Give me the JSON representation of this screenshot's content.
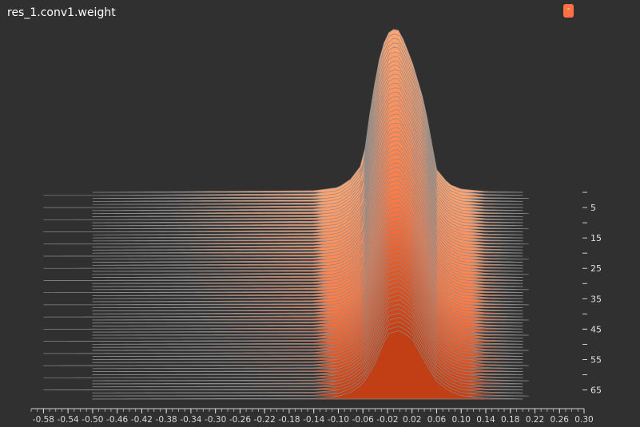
{
  "header": {
    "title": "res_1.conv1.weight",
    "badge_label": "-"
  },
  "chart_data": {
    "type": "area",
    "title": "res_1.conv1.weight",
    "xlabel": "",
    "ylabel": "",
    "x_ticks": [
      "-0.58",
      "-0.54",
      "-0.50",
      "-0.46",
      "-0.42",
      "-0.38",
      "-0.34",
      "-0.30",
      "-0.26",
      "-0.22",
      "-0.18",
      "-0.14",
      "-0.10",
      "-0.06",
      "-0.02",
      "0.02",
      "0.06",
      "0.10",
      "0.14",
      "0.18",
      "0.22",
      "0.26",
      "0.30"
    ],
    "xlim": [
      -0.6,
      0.3
    ],
    "y_ticks": [
      5,
      15,
      25,
      35,
      45,
      55,
      65
    ],
    "y_minor_ticks": [
      0,
      10,
      20,
      30,
      40,
      45,
      50,
      60
    ],
    "steps": 69,
    "colors": {
      "front": "#c23e14",
      "mid": "#ff7a45",
      "back": "#ffa472",
      "edge": "#8a8a8a",
      "background": "#303030"
    },
    "distribution": {
      "front_step": {
        "center": -0.005,
        "peak_height_fraction": 0.43
      },
      "back_step": {
        "center": -0.01,
        "peak_height_fraction": 0.63
      }
    },
    "front_profile": [
      [
        -0.58,
        0
      ],
      [
        -0.14,
        0.01
      ],
      [
        -0.1,
        0.04
      ],
      [
        -0.08,
        0.1
      ],
      [
        -0.06,
        0.22
      ],
      [
        -0.04,
        0.52
      ],
      [
        -0.02,
        0.95
      ],
      [
        0.0,
        1.0
      ],
      [
        0.02,
        0.88
      ],
      [
        0.04,
        0.55
      ],
      [
        0.06,
        0.26
      ],
      [
        0.08,
        0.12
      ],
      [
        0.1,
        0.05
      ],
      [
        0.14,
        0.015
      ],
      [
        0.21,
        0
      ]
    ],
    "back_profile": [
      [
        -0.5,
        0
      ],
      [
        -0.14,
        0.01
      ],
      [
        -0.1,
        0.03
      ],
      [
        -0.08,
        0.08
      ],
      [
        -0.06,
        0.18
      ],
      [
        -0.045,
        0.58
      ],
      [
        -0.03,
        0.88
      ],
      [
        -0.015,
        1.0
      ],
      [
        0.0,
        0.99
      ],
      [
        0.02,
        0.8
      ],
      [
        0.04,
        0.55
      ],
      [
        0.06,
        0.14
      ],
      [
        0.08,
        0.05
      ],
      [
        0.1,
        0.02
      ],
      [
        0.14,
        0.005
      ],
      [
        0.21,
        0
      ]
    ]
  }
}
